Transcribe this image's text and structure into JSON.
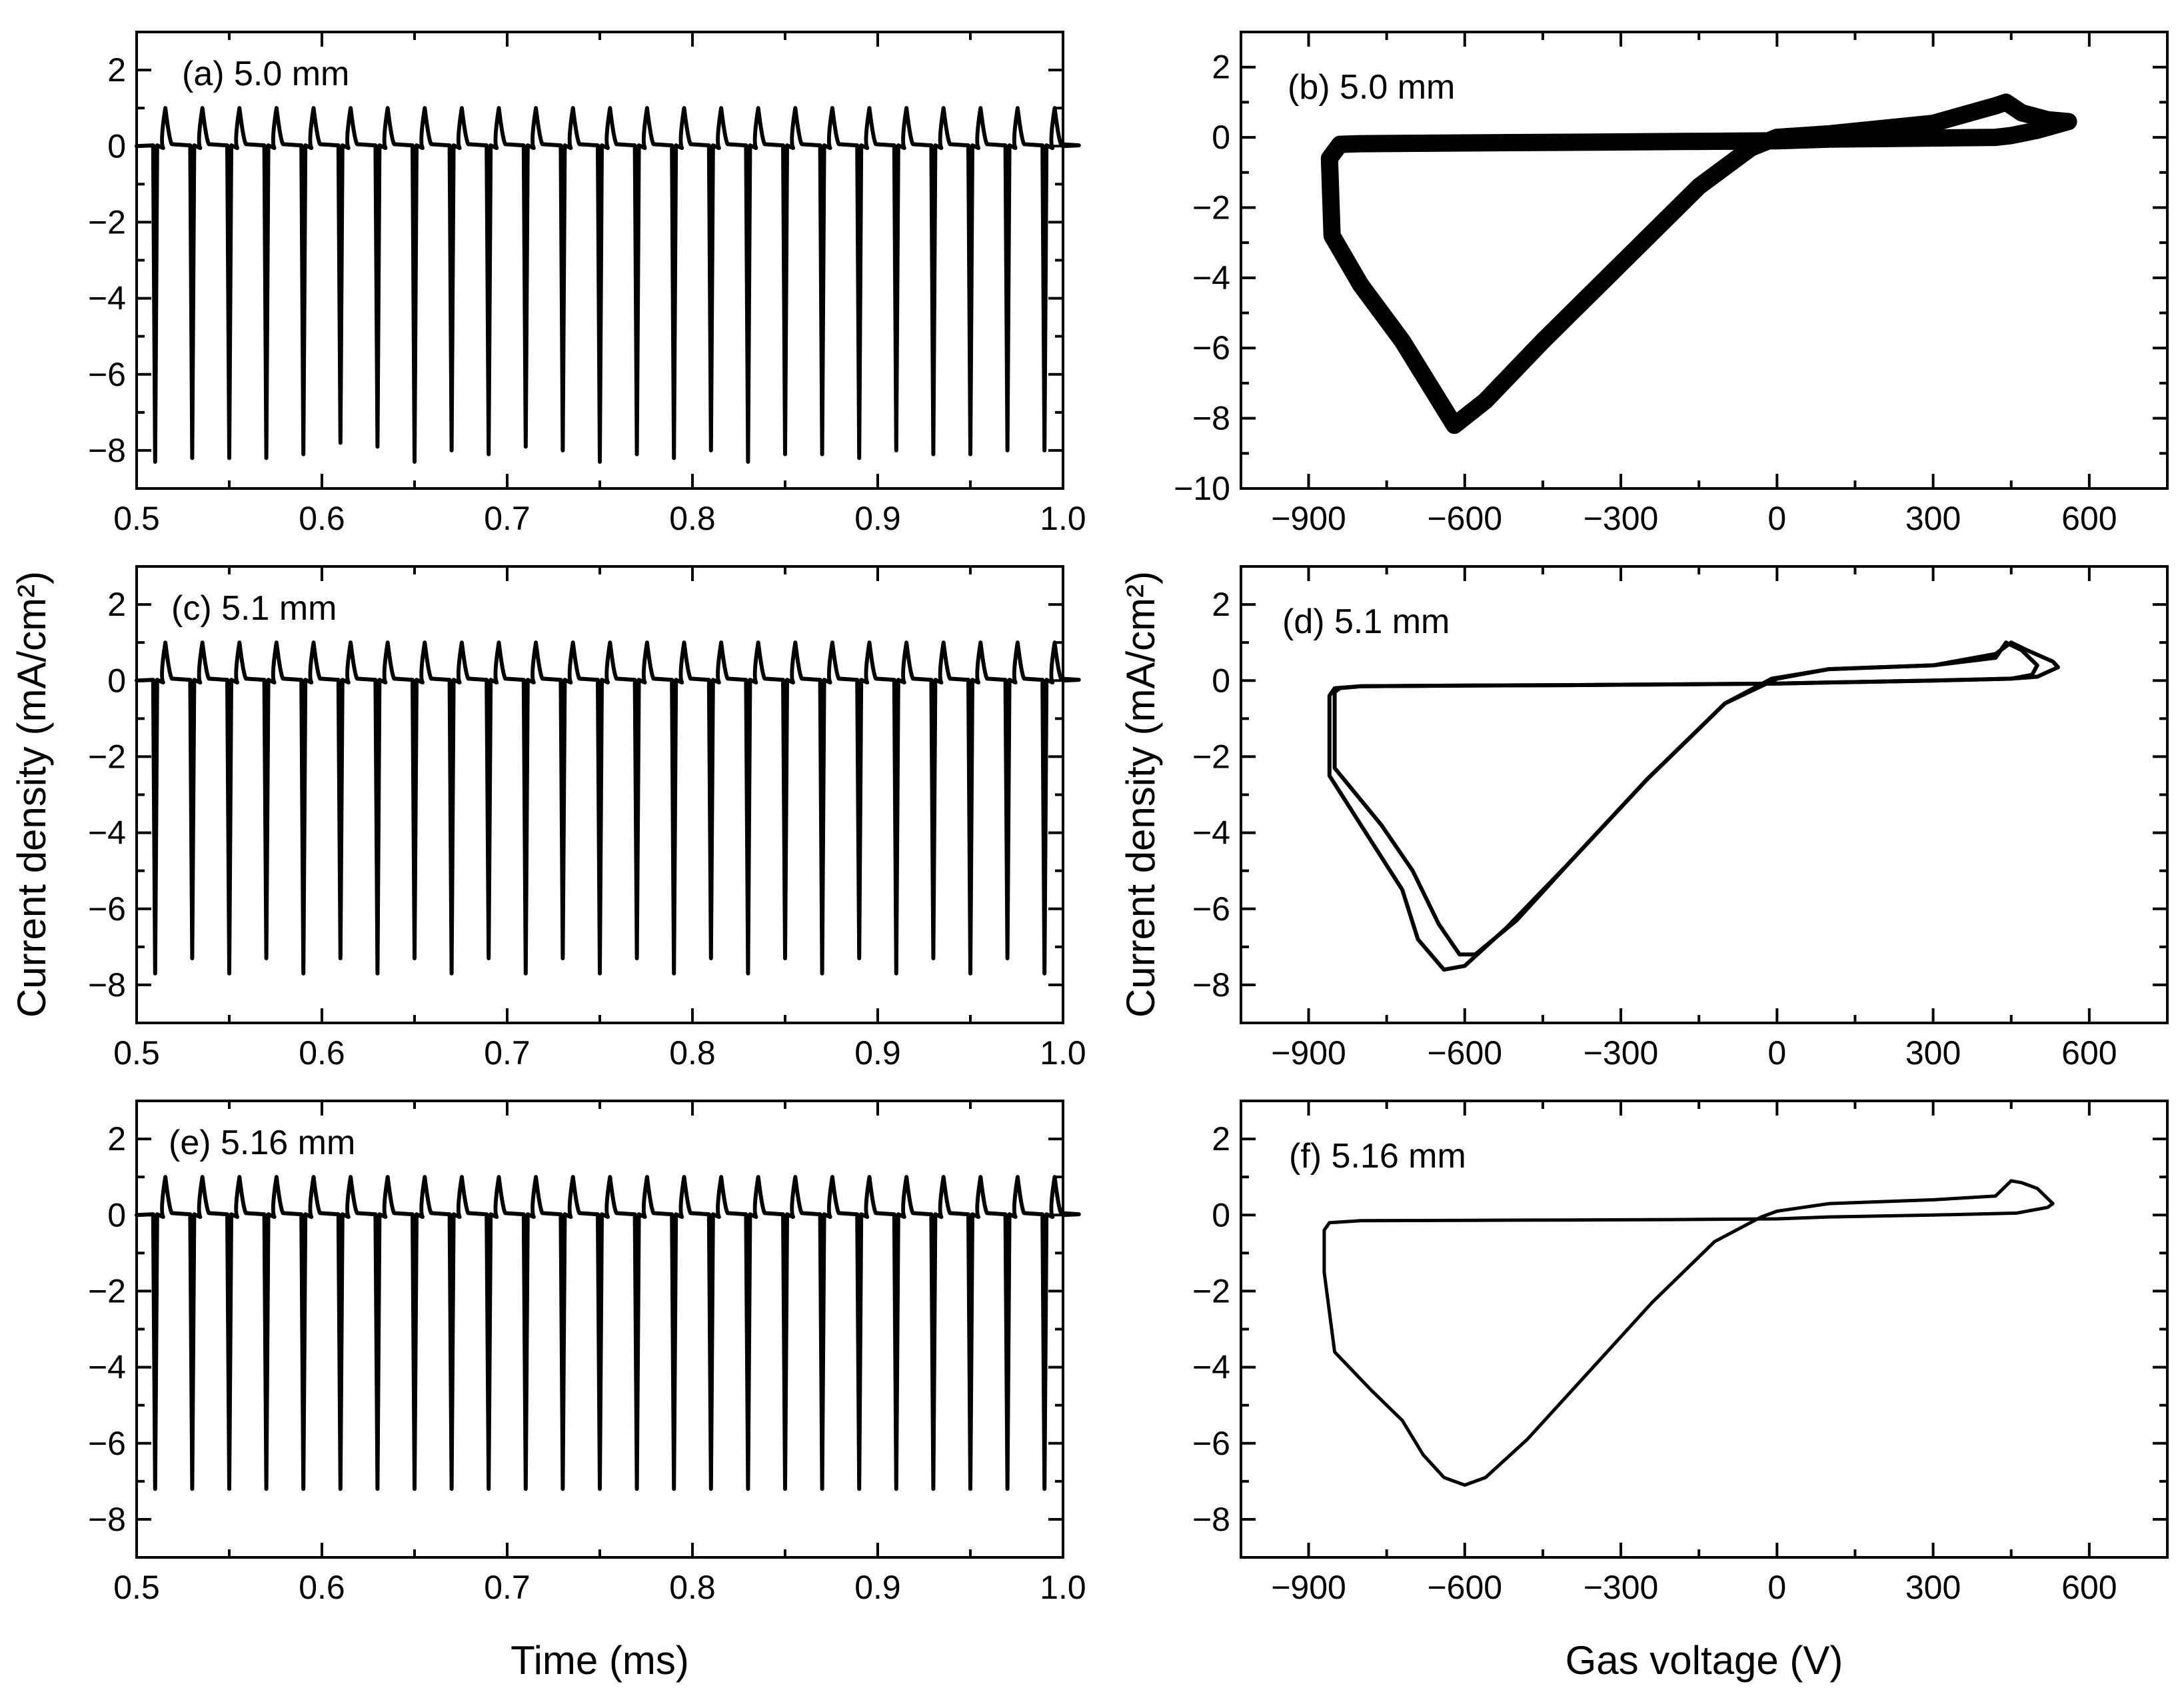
{
  "figure": {
    "ylabel_left": "Current density (mA/cm²)",
    "ylabel_right": "Current density (mA/cm²)",
    "xlabel_left": "Time (ms)",
    "xlabel_right": "Gas voltage (V)"
  },
  "chart_data": [
    {
      "id": "a",
      "type": "line",
      "label": "(a) 5.0 mm",
      "xlabel": "Time (ms)",
      "ylabel": "Current density (mA/cm²)",
      "xlim": [
        0.5,
        1.0
      ],
      "ylim": [
        -9,
        3
      ],
      "xticks": [
        "0.5",
        "0.6",
        "0.7",
        "0.8",
        "0.9",
        "1.0"
      ],
      "xtick_values": [
        0.5,
        0.6,
        0.7,
        0.8,
        0.9,
        1.0
      ],
      "yticks": [
        "2",
        "0",
        "−2",
        "−4",
        "−6",
        "−8"
      ],
      "ytick_values": [
        2,
        0,
        -2,
        -4,
        -6,
        -8
      ],
      "pulse": {
        "t_start": 0.51,
        "period": 0.02,
        "t_end": 0.99,
        "positive_peak": 1.0,
        "negative_peaks": [
          -8.3,
          -8.2,
          -8.2,
          -8.2,
          -8.1,
          -7.8,
          -7.9,
          -8.3,
          -8.0,
          -8.1,
          -7.9,
          -8.0,
          -8.3,
          -8.1,
          -8.2,
          -8.0,
          -8.3,
          -8.1,
          -8.1,
          -8.2,
          -8.0,
          -8.1,
          -8.1,
          -8.0,
          -8.0
        ]
      },
      "series": [
        {
          "name": "current density",
          "x": "pulse train",
          "y": "pulse train"
        }
      ]
    },
    {
      "id": "b",
      "type": "line",
      "label": "(b) 5.0 mm",
      "xlabel": "Gas voltage (V)",
      "ylabel": "Current density (mA/cm²)",
      "xlim": [
        -1030,
        750
      ],
      "ylim": [
        -10,
        3
      ],
      "xticks": [
        "−900",
        "−600",
        "−300",
        "0",
        "300",
        "600"
      ],
      "xtick_values": [
        -900,
        -600,
        -300,
        0,
        300,
        600
      ],
      "yticks": [
        "2",
        "0",
        "−2",
        "−4",
        "−6",
        "−8",
        "−10"
      ],
      "ytick_values": [
        2,
        0,
        -2,
        -4,
        -6,
        -8,
        -10
      ],
      "loops": [
        {
          "x": [
            -860,
            -855,
            -800,
            -720,
            -620,
            -560,
            -450,
            -300,
            -150,
            -50,
            0,
            100,
            300,
            420,
            440,
            470,
            520,
            560,
            500,
            450,
            420,
            300,
            100,
            0,
            -200,
            -400,
            -600,
            -800,
            -840,
            -860
          ],
          "y": [
            -0.6,
            -2.8,
            -4.2,
            -5.8,
            -8.2,
            -7.5,
            -5.8,
            -3.6,
            -1.4,
            -0.3,
            0.0,
            0.1,
            0.4,
            0.9,
            1.0,
            0.7,
            0.5,
            0.45,
            0.2,
            0.05,
            0.0,
            -0.02,
            -0.05,
            -0.1,
            -0.12,
            -0.14,
            -0.16,
            -0.18,
            -0.2,
            -0.6
          ]
        }
      ],
      "band_width": 26
    },
    {
      "id": "c",
      "type": "line",
      "label": "(c) 5.1 mm",
      "xlabel": "Time (ms)",
      "ylabel": "Current density (mA/cm²)",
      "xlim": [
        0.5,
        1.0
      ],
      "ylim": [
        -9,
        3
      ],
      "xticks": [
        "0.5",
        "0.6",
        "0.7",
        "0.8",
        "0.9",
        "1.0"
      ],
      "xtick_values": [
        0.5,
        0.6,
        0.7,
        0.8,
        0.9,
        1.0
      ],
      "yticks": [
        "2",
        "0",
        "−2",
        "−4",
        "−6",
        "−8"
      ],
      "ytick_values": [
        2,
        0,
        -2,
        -4,
        -6,
        -8
      ],
      "pulse": {
        "t_start": 0.51,
        "period": 0.02,
        "t_end": 0.99,
        "positive_peak": 1.0,
        "negative_peaks": [
          -7.7,
          -7.3,
          -7.7,
          -7.3,
          -7.7,
          -7.3,
          -7.7,
          -7.3,
          -7.7,
          -7.3,
          -7.7,
          -7.3,
          -7.7,
          -7.3,
          -7.7,
          -7.3,
          -7.7,
          -7.3,
          -7.7,
          -7.3,
          -7.7,
          -7.3,
          -7.7,
          -7.3,
          -7.7
        ]
      },
      "series": [
        {
          "name": "current density",
          "x": "pulse train",
          "y": "pulse train"
        }
      ]
    },
    {
      "id": "d",
      "type": "line",
      "label": "(d) 5.1 mm",
      "xlabel": "Gas voltage (V)",
      "ylabel": "Current density (mA/cm²)",
      "xlim": [
        -1030,
        750
      ],
      "ylim": [
        -9,
        3
      ],
      "xticks": [
        "−900",
        "−600",
        "−300",
        "0",
        "300",
        "600"
      ],
      "xtick_values": [
        -900,
        -600,
        -300,
        0,
        300,
        600
      ],
      "yticks": [
        "2",
        "0",
        "−2",
        "−4",
        "−6",
        "−8"
      ],
      "ytick_values": [
        2,
        0,
        -2,
        -4,
        -6,
        -8
      ],
      "loops": [
        {
          "x": [
            -860,
            -860,
            -790,
            -720,
            -690,
            -640,
            -600,
            -520,
            -400,
            -250,
            -100,
            0,
            100,
            300,
            420,
            450,
            480,
            530,
            540,
            500,
            450,
            300,
            100,
            0,
            -200,
            -400,
            -600,
            -800,
            -850,
            -860
          ],
          "y": [
            -0.4,
            -2.5,
            -4.0,
            -5.5,
            -6.8,
            -7.6,
            -7.5,
            -6.5,
            -4.8,
            -2.6,
            -0.6,
            0.05,
            0.3,
            0.4,
            0.7,
            1.0,
            0.8,
            0.5,
            0.35,
            0.1,
            0.05,
            0.0,
            -0.05,
            -0.08,
            -0.1,
            -0.12,
            -0.13,
            -0.15,
            -0.2,
            -0.4
          ]
        },
        {
          "x": [
            -850,
            -850,
            -760,
            -700,
            -650,
            -610,
            -580,
            -500,
            -400,
            -250,
            -100,
            -10,
            100,
            300,
            420,
            440,
            470,
            500,
            490,
            450,
            300,
            100,
            0,
            -200,
            -400,
            -600,
            -800,
            -840,
            -850
          ],
          "y": [
            -0.3,
            -2.3,
            -3.8,
            -5.0,
            -6.4,
            -7.2,
            -7.2,
            -6.3,
            -4.8,
            -2.6,
            -0.6,
            0.05,
            0.3,
            0.4,
            0.6,
            1.0,
            0.8,
            0.4,
            0.15,
            0.05,
            0.0,
            -0.05,
            -0.08,
            -0.1,
            -0.12,
            -0.13,
            -0.15,
            -0.2,
            -0.3
          ]
        }
      ],
      "band_width": 6
    },
    {
      "id": "e",
      "type": "line",
      "label": "(e) 5.16 mm",
      "xlabel": "Time (ms)",
      "ylabel": "Current density (mA/cm²)",
      "xlim": [
        0.5,
        1.0
      ],
      "ylim": [
        -9,
        3
      ],
      "xticks": [
        "0.5",
        "0.6",
        "0.7",
        "0.8",
        "0.9",
        "1.0"
      ],
      "xtick_values": [
        0.5,
        0.6,
        0.7,
        0.8,
        0.9,
        1.0
      ],
      "yticks": [
        "2",
        "0",
        "−2",
        "−4",
        "−6",
        "−8"
      ],
      "ytick_values": [
        2,
        0,
        -2,
        -4,
        -6,
        -8
      ],
      "pulse": {
        "t_start": 0.51,
        "period": 0.02,
        "t_end": 0.99,
        "positive_peak": 1.0,
        "negative_peaks": [
          -7.2,
          -7.2,
          -7.2,
          -7.2,
          -7.2,
          -7.2,
          -7.2,
          -7.2,
          -7.2,
          -7.2,
          -7.2,
          -7.2,
          -7.2,
          -7.2,
          -7.2,
          -7.2,
          -7.2,
          -7.2,
          -7.2,
          -7.2,
          -7.2,
          -7.2,
          -7.2,
          -7.2,
          -7.2
        ]
      },
      "series": [
        {
          "name": "current density",
          "x": "pulse train",
          "y": "pulse train"
        }
      ]
    },
    {
      "id": "f",
      "type": "line",
      "label": "(f) 5.16 mm",
      "xlabel": "Gas voltage (V)",
      "ylabel": "Current density (mA/cm²)",
      "xlim": [
        -1030,
        750
      ],
      "ylim": [
        -9,
        3
      ],
      "xticks": [
        "−900",
        "−600",
        "−300",
        "0",
        "300",
        "600"
      ],
      "xtick_values": [
        -900,
        -600,
        -300,
        0,
        300,
        600
      ],
      "yticks": [
        "2",
        "0",
        "−2",
        "−4",
        "−6",
        "−8"
      ],
      "ytick_values": [
        2,
        0,
        -2,
        -4,
        -6,
        -8
      ],
      "loops": [
        {
          "x": [
            -870,
            -870,
            -850,
            -780,
            -720,
            -680,
            -640,
            -600,
            -560,
            -480,
            -360,
            -240,
            -120,
            -30,
            0,
            100,
            300,
            420,
            450,
            470,
            500,
            530,
            520,
            460,
            300,
            100,
            0,
            -200,
            -400,
            -600,
            -800,
            -860,
            -870
          ],
          "y": [
            -0.4,
            -1.5,
            -3.6,
            -4.6,
            -5.4,
            -6.3,
            -6.9,
            -7.1,
            -6.9,
            -5.9,
            -4.1,
            -2.3,
            -0.7,
            -0.05,
            0.1,
            0.3,
            0.4,
            0.5,
            0.9,
            0.85,
            0.7,
            0.3,
            0.2,
            0.05,
            0.0,
            -0.05,
            -0.1,
            -0.12,
            -0.13,
            -0.14,
            -0.15,
            -0.2,
            -0.4
          ]
        }
      ],
      "band_width": 5
    }
  ]
}
